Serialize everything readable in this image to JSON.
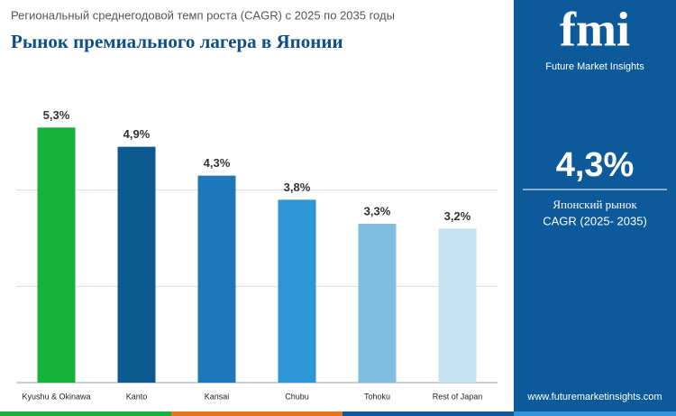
{
  "chart_data": {
    "type": "bar",
    "subtitle": "Региональный среднегодовой темп роста (CAGR) с 2025 по 2035 годы",
    "title": "Рынок премиального лагера в Японии",
    "categories": [
      "Kyushu & Okinawa",
      "Kanto",
      "Kansai",
      "Chubu",
      "Tohoku",
      "Rest of Japan"
    ],
    "values": [
      5.3,
      4.9,
      4.3,
      3.8,
      3.3,
      3.2
    ],
    "value_labels": [
      "5,3%",
      "4,9%",
      "4,3%",
      "3,8%",
      "3,3%",
      "3,2%"
    ],
    "colors": [
      "#14b23a",
      "#0a5a8f",
      "#1c78b8",
      "#2e96d6",
      "#7fbde3",
      "#c5e2f3"
    ],
    "ylim": [
      0,
      6
    ],
    "yticks": [
      0,
      2,
      4
    ],
    "grid": true
  },
  "panel": {
    "logo": "fmi",
    "brand": "Future Market Insights",
    "value": "4,3%",
    "label": "Японский рынок",
    "period": "CAGR (2025- 2035)",
    "website": "www.futuremarketinsights.com"
  }
}
